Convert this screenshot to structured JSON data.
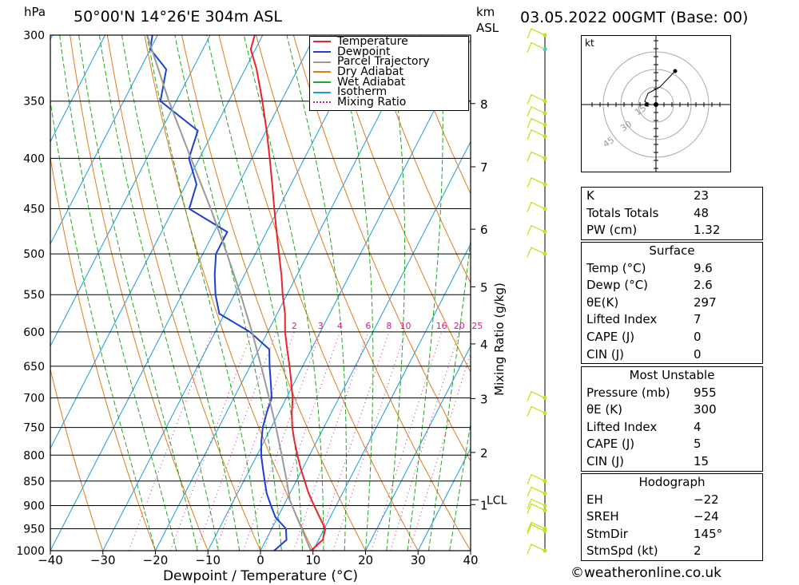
{
  "header": {
    "hpa_unit": "hPa",
    "location": "50°00'N  14°26'E  304m  ASL",
    "km_unit": "km",
    "asl": "ASL",
    "datetime": "03.05.2022  00GMT  (Base: 00)"
  },
  "legend": [
    "Temperature",
    "Dewpoint",
    "Parcel Trajectory",
    "Dry Adiabat",
    "Wet Adiabat",
    "Isotherm",
    "Mixing Ratio"
  ],
  "colors": {
    "temperature": "#e8242a",
    "dewpoint": "#1c3fd6",
    "parcel": "#9a9a9a",
    "dry_adiabat": "#e07b1a",
    "wet_adiabat": "#1fa81f",
    "isotherm": "#1a9be0",
    "mixing_ratio": "#cc1c8c",
    "wind": "#c8e020"
  },
  "chart_data": {
    "type": "line",
    "xlabel": "Dewpoint / Temperature (°C)",
    "ylabel": "hPa",
    "right_label": "Mixing Ratio (g/kg)",
    "xlim": [
      -40,
      40
    ],
    "ylim": [
      1000,
      300
    ],
    "x_ticks": [
      "−40",
      "−30",
      "−20",
      "−10",
      "0",
      "10",
      "20",
      "30",
      "40"
    ],
    "pressure_ticks": [
      300,
      350,
      400,
      450,
      500,
      550,
      600,
      650,
      700,
      750,
      800,
      850,
      900,
      950,
      1000
    ],
    "km_ticks": [
      {
        "label": "8",
        "p": 352
      },
      {
        "label": "7",
        "p": 408
      },
      {
        "label": "6",
        "p": 472
      },
      {
        "label": "5",
        "p": 540
      },
      {
        "label": "4",
        "p": 617
      },
      {
        "label": "3",
        "p": 701
      },
      {
        "label": "2",
        "p": 795
      },
      {
        "label": "1",
        "p": 898
      }
    ],
    "lcl": {
      "label": "LCL",
      "p": 888
    },
    "mixing_ratio_labels": [
      "2",
      "3",
      "4",
      "6",
      "8",
      "10",
      "16",
      "20",
      "25"
    ],
    "series": [
      {
        "name": "Temperature",
        "p": [
          1000,
          975,
          950,
          925,
          900,
          875,
          850,
          825,
          800,
          775,
          750,
          725,
          700,
          675,
          650,
          625,
          600,
          575,
          550,
          525,
          500,
          475,
          450,
          425,
          400,
          375,
          350,
          325,
          310,
          300
        ],
        "t": [
          9.6,
          10.8,
          10.2,
          8.0,
          5.8,
          3.6,
          1.6,
          -0.4,
          -2.3,
          -4.2,
          -6.0,
          -7.5,
          -8.8,
          -10.6,
          -12.5,
          -14.6,
          -16.7,
          -18.5,
          -20.8,
          -23.0,
          -25.5,
          -28.1,
          -30.8,
          -33.6,
          -36.6,
          -39.9,
          -43.6,
          -47.8,
          -50.9,
          -51.5
        ]
      },
      {
        "name": "Dewpoint",
        "p": [
          1000,
          975,
          950,
          925,
          900,
          875,
          850,
          825,
          800,
          775,
          750,
          725,
          700,
          675,
          650,
          625,
          600,
          575,
          550,
          525,
          500,
          475,
          450,
          425,
          400,
          375,
          350,
          325,
          310,
          300
        ],
        "t": [
          2.6,
          3.9,
          2.7,
          -0.4,
          -2.4,
          -4.4,
          -6.0,
          -7.6,
          -9.2,
          -10.5,
          -11.6,
          -12.3,
          -12.8,
          -14.5,
          -16.3,
          -18.0,
          -23.4,
          -31.0,
          -33.6,
          -35.7,
          -37.5,
          -37.5,
          -47.0,
          -48.0,
          -52.0,
          -53.0,
          -63.0,
          -65.0,
          -70.0,
          -71.0
        ]
      },
      {
        "name": "Parcel Trajectory",
        "p": [
          1000,
          950,
          900,
          888,
          850,
          800,
          750,
          700,
          650,
          600,
          550,
          500,
          450,
          400,
          350,
          300
        ],
        "t": [
          9.6,
          5.7,
          1.6,
          0.6,
          -1.8,
          -5.3,
          -9.1,
          -13.3,
          -17.9,
          -23.0,
          -28.8,
          -35.4,
          -42.9,
          -51.6,
          -61.4,
          -72.0
        ]
      }
    ]
  },
  "hodograph": {
    "unit": "kt",
    "ring_labels": [
      "15",
      "30",
      "45"
    ]
  },
  "indices": [
    {
      "label": "K",
      "value": "23"
    },
    {
      "label": "Totals Totals",
      "value": "48"
    },
    {
      "label": "PW (cm)",
      "value": "1.32"
    }
  ],
  "surface": {
    "title": "Surface",
    "rows": [
      {
        "label": "Temp (°C)",
        "value": "9.6"
      },
      {
        "label": "Dewp (°C)",
        "value": "2.6"
      },
      {
        "label": "θE(K)",
        "value": "297"
      },
      {
        "label": "Lifted Index",
        "value": "7"
      },
      {
        "label": "CAPE (J)",
        "value": "0"
      },
      {
        "label": "CIN (J)",
        "value": "0"
      }
    ]
  },
  "most_unstable": {
    "title": "Most Unstable",
    "rows": [
      {
        "label": "Pressure (mb)",
        "value": "955"
      },
      {
        "label": "θE (K)",
        "value": "300"
      },
      {
        "label": "Lifted Index",
        "value": "4"
      },
      {
        "label": "CAPE (J)",
        "value": "5"
      },
      {
        "label": "CIN (J)",
        "value": "15"
      }
    ]
  },
  "hodograph_stats": {
    "title": "Hodograph",
    "rows": [
      {
        "label": "EH",
        "value": "−22"
      },
      {
        "label": "SREH",
        "value": "−24"
      },
      {
        "label": "StmDir",
        "value": "145°"
      },
      {
        "label": "StmSpd (kt)",
        "value": "2"
      }
    ]
  },
  "credit": "©weatheronline.co.uk"
}
